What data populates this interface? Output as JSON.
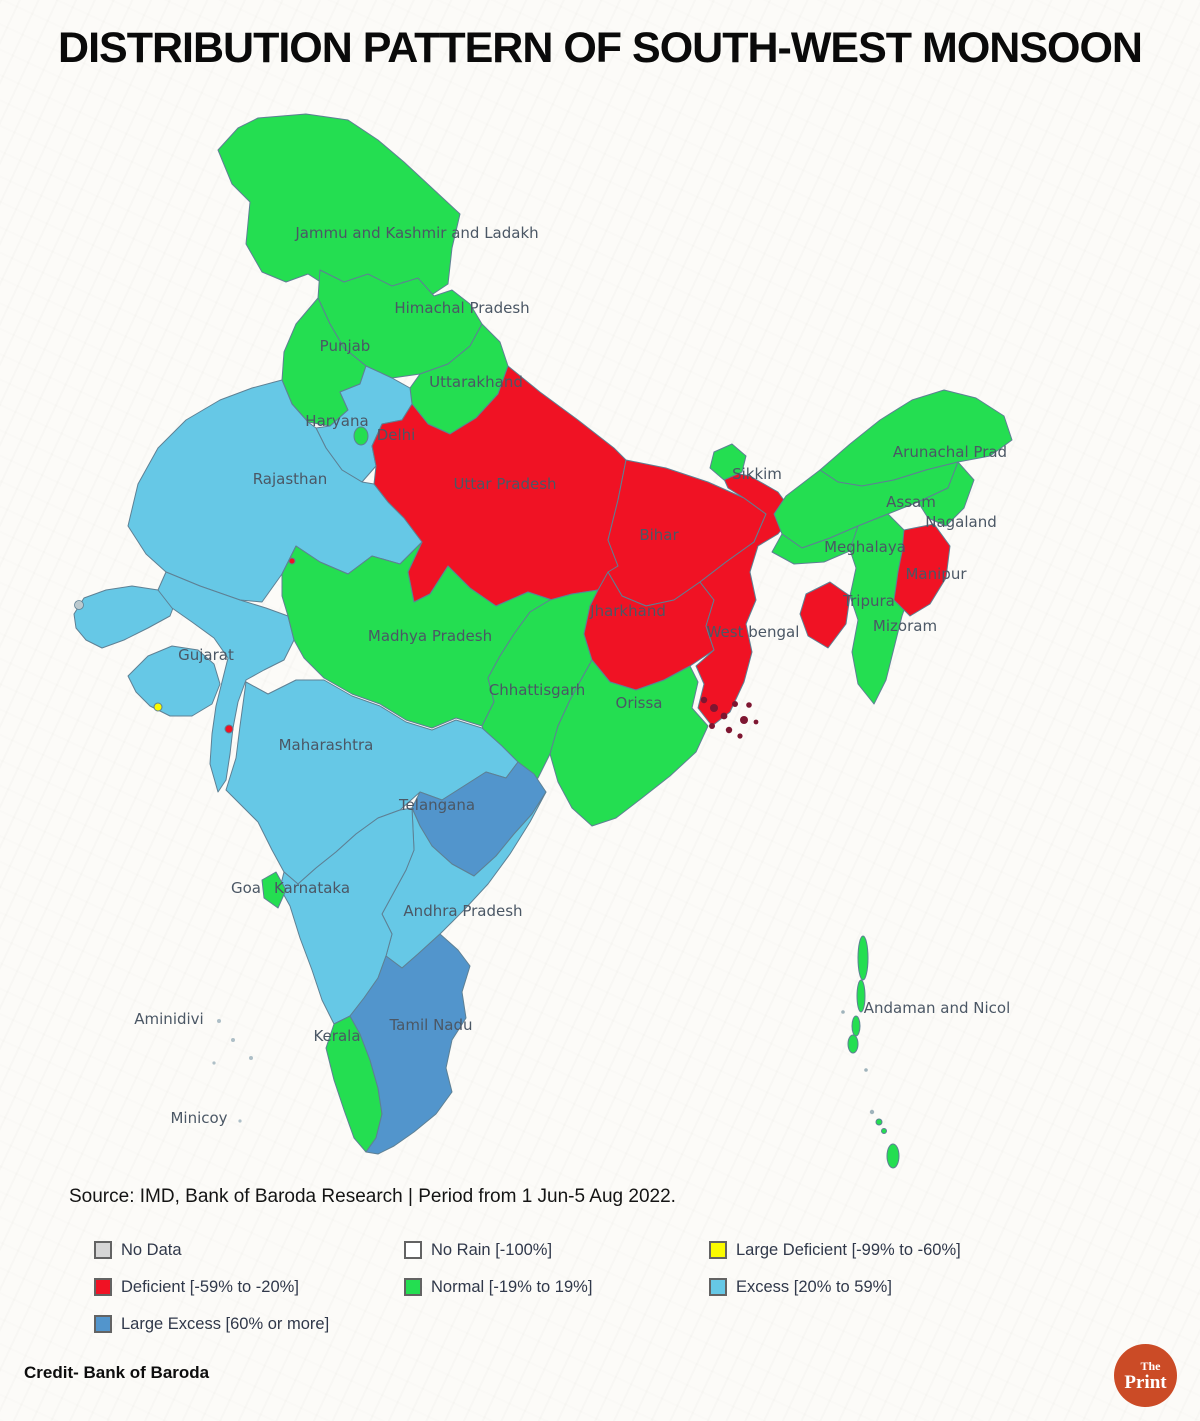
{
  "title": "DISTRIBUTION PATTERN OF SOUTH-WEST MONSOON",
  "source_line": "Source: IMD, Bank of Baroda Research | Period from 1 Jun-5 Aug 2022.",
  "credit": "Credit- Bank of Baroda",
  "logo": {
    "line1": "The",
    "line2": "Print"
  },
  "legend": {
    "items": [
      {
        "id": "no-data",
        "label": "No Data",
        "color": "#d6d6d6"
      },
      {
        "id": "no-rain",
        "label": "No Rain [-100%]",
        "color": "#ffffff"
      },
      {
        "id": "large-deficient",
        "label": "Large Deficient [-99% to -60%]",
        "color": "#fbfb00"
      },
      {
        "id": "deficient",
        "label": "Deficient [-59% to -20%]",
        "color": "#f01224"
      },
      {
        "id": "normal",
        "label": "Normal [-19% to 19%]",
        "color": "#24de51"
      },
      {
        "id": "excess",
        "label": "Excess [20% to 59%]",
        "color": "#66c8e6"
      },
      {
        "id": "large-excess",
        "label": "Large Excess [60% or more]",
        "color": "#5295cc"
      }
    ]
  },
  "map": {
    "border_color": "#5e8094",
    "label_color": "#4b5765",
    "category_colors": {
      "no_data": "#d6d6d6",
      "no_rain": "#ffffff",
      "large_deficient": "#fbfb00",
      "deficient": "#f01224",
      "normal": "#24de51",
      "excess": "#66c8e6",
      "large_excess": "#5295cc"
    },
    "states": [
      {
        "id": "jammu-kashmir-ladakh",
        "name": "Jammu and Kashmir and Ladakh",
        "category": "normal"
      },
      {
        "id": "himachal-pradesh",
        "name": "Himachal Pradesh",
        "category": "normal"
      },
      {
        "id": "punjab",
        "name": "Punjab",
        "category": "normal"
      },
      {
        "id": "uttarakhand",
        "name": "Uttarakhand",
        "category": "normal"
      },
      {
        "id": "haryana",
        "name": "Haryana",
        "category": "excess"
      },
      {
        "id": "rajasthan",
        "name": "Rajasthan",
        "category": "excess"
      },
      {
        "id": "uttar-pradesh",
        "name": "Uttar Pradesh",
        "category": "deficient"
      },
      {
        "id": "delhi",
        "name": "Delhi",
        "category": "normal"
      },
      {
        "id": "gujarat",
        "name": "Gujarat",
        "category": "excess"
      },
      {
        "id": "madhya-pradesh",
        "name": "Madhya Pradesh",
        "category": "normal"
      },
      {
        "id": "chhattisgarh",
        "name": "Chhattisgarh",
        "category": "normal"
      },
      {
        "id": "bihar",
        "name": "Bihar",
        "category": "deficient"
      },
      {
        "id": "jharkhand",
        "name": "Jharkhand",
        "category": "deficient"
      },
      {
        "id": "west-bengal",
        "name": "West bengal",
        "category": "deficient"
      },
      {
        "id": "sikkim",
        "name": "Sikkim",
        "category": "normal"
      },
      {
        "id": "orissa",
        "name": "Orissa",
        "category": "normal"
      },
      {
        "id": "maharashtra",
        "name": "Maharashtra",
        "category": "excess"
      },
      {
        "id": "telangana",
        "name": "Telangana",
        "category": "large_excess"
      },
      {
        "id": "andhra-pradesh",
        "name": "Andhra Pradesh",
        "category": "excess"
      },
      {
        "id": "karnataka",
        "name": "Karnataka",
        "category": "excess"
      },
      {
        "id": "goa",
        "name": "Goa",
        "category": "normal"
      },
      {
        "id": "kerala",
        "name": "Kerala",
        "category": "normal"
      },
      {
        "id": "tamil-nadu",
        "name": "Tamil Nadu",
        "category": "large_excess"
      },
      {
        "id": "arunachal-pradesh",
        "name": "Arunachal Prad",
        "category": "normal"
      },
      {
        "id": "assam",
        "name": "Assam",
        "category": "normal"
      },
      {
        "id": "nagaland",
        "name": "Nagaland",
        "category": "normal"
      },
      {
        "id": "meghalaya",
        "name": "Meghalaya",
        "category": "normal"
      },
      {
        "id": "mizoram",
        "name": "Mizoram",
        "category": "normal"
      },
      {
        "id": "manipur",
        "name": "Manipur",
        "category": "deficient"
      },
      {
        "id": "tripura",
        "name": "Tripura",
        "category": "deficient"
      },
      {
        "id": "andaman-nicobar",
        "name": "Andaman and Nicol",
        "category": "normal"
      },
      {
        "id": "aminidivi",
        "name": "Aminidivi",
        "category": ""
      },
      {
        "id": "minicoy",
        "name": "Minicoy",
        "category": ""
      },
      {
        "id": "diu-spot",
        "name": "",
        "category": "large_deficient"
      },
      {
        "id": "daman-spot",
        "name": "",
        "category": "deficient"
      },
      {
        "id": "border-spot",
        "name": "",
        "category": "deficient"
      }
    ]
  }
}
